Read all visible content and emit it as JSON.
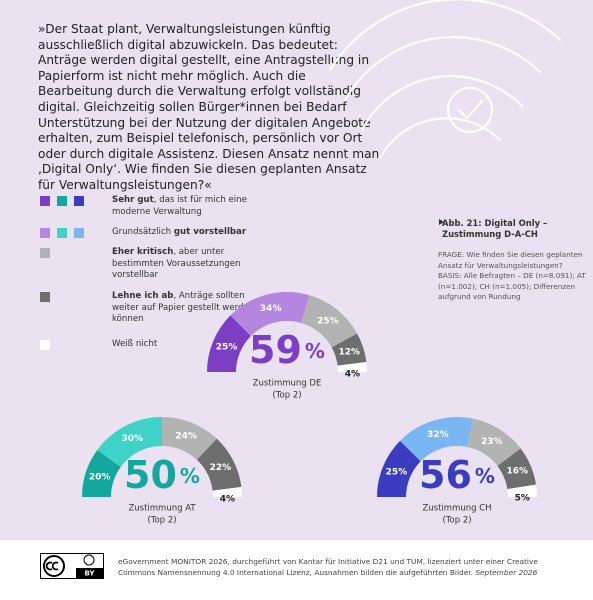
{
  "question": "»Der Staat plant, Verwaltungsleistungen künftig ausschließlich digital abzuwickeln. Das bedeutet: Anträge werden digital gestellt, eine Antragstellung in Papierform ist nicht mehr möglich. Auch die Bearbeitung durch die Verwaltung erfolgt vollständig digital. Gleichzeitig sollen Bürger*innen bei Bedarf Unterstützung bei der Nutzung der digitalen Angebote erhalten, zum Beispiel telefonisch, persönlich vor Ort oder durch digitale Assistenz. Diesen Ansatz nennt man ‚Digital Only‘. Wie finden Sie diesen geplanten Ansatz für Verwaltungsleistungen?«",
  "legend": [
    {
      "parts": [
        {
          "text": "Sehr gut",
          "bold": true
        },
        {
          "text": ", das ist für mich eine moderne Verwaltung"
        }
      ]
    },
    {
      "parts": [
        {
          "text": "Grundsätzlich "
        },
        {
          "text": "gut vorstellbar",
          "bold": true
        }
      ]
    },
    {
      "parts": [
        {
          "text": "Eher kritisch",
          "bold": true
        },
        {
          "text": ", aber unter bestimmten Voraussetzungen vorstellbar"
        }
      ]
    },
    {
      "parts": [
        {
          "text": "Lehne ich ab",
          "bold": true
        },
        {
          "text": ", Anträge sollten weiter auf Papier gestellt werden können"
        }
      ]
    },
    {
      "parts": [
        {
          "text": "Weiß nicht"
        }
      ]
    }
  ],
  "figure": {
    "title": "Abb. 21: Digital Only – Zustimmung D-A-CH",
    "question": "FRAGE: Wie finden Sie diesen geplanten Ansatz für Verwaltungsleistungen?",
    "base": "BASIS: Alle Befragten – DE (n=8.091); AT (n=1.002); CH (n=1.005); Differenzen aufgrund von Rundung"
  },
  "footer": {
    "text": "eGovernment MONITOR 2026, durchgeführt von Kantar für Initiative D21 und TUM, lizenziert unter einer Creative Commons Namensnennung 4.0 International Lizenz, Ausnahmen bilden die aufgeführten Bilder. ",
    "date": "September 2026",
    "license_badge": "BY"
  },
  "chart_data": [
    {
      "type": "donut",
      "semicircle": true,
      "values": [
        25,
        34,
        25,
        12,
        4
      ],
      "value_labels": [
        "25%",
        "34%",
        "25%",
        "12%",
        "4%"
      ],
      "colors": [
        "#7b3fc4",
        "#b486e0",
        "#b3b3b3",
        "#6e6e6e",
        "#ffffff"
      ],
      "summary_value": 59,
      "summary_unit": "%",
      "caption": "Zustimmung DE",
      "caption_note": "(Top 2)"
    },
    {
      "type": "donut",
      "semicircle": true,
      "values": [
        20,
        30,
        24,
        22,
        4
      ],
      "value_labels": [
        "20%",
        "30%",
        "24%",
        "22%",
        "4%"
      ],
      "colors": [
        "#13a89e",
        "#3fd2c6",
        "#b3b3b3",
        "#6e6e6e",
        "#ffffff"
      ],
      "summary_value": 50,
      "summary_unit": "%",
      "caption": "Zustimmung AT",
      "caption_note": "(Top 2)"
    },
    {
      "type": "donut",
      "semicircle": true,
      "values": [
        25,
        32,
        23,
        16,
        5
      ],
      "value_labels": [
        "25%",
        "32%",
        "23%",
        "16%",
        "5%"
      ],
      "colors": [
        "#3b3cc0",
        "#7ab6f2",
        "#b3b3b3",
        "#6e6e6e",
        "#ffffff"
      ],
      "summary_value": 56,
      "summary_unit": "%",
      "caption": "Zustimmung CH",
      "caption_note": "(Top 2)"
    }
  ]
}
